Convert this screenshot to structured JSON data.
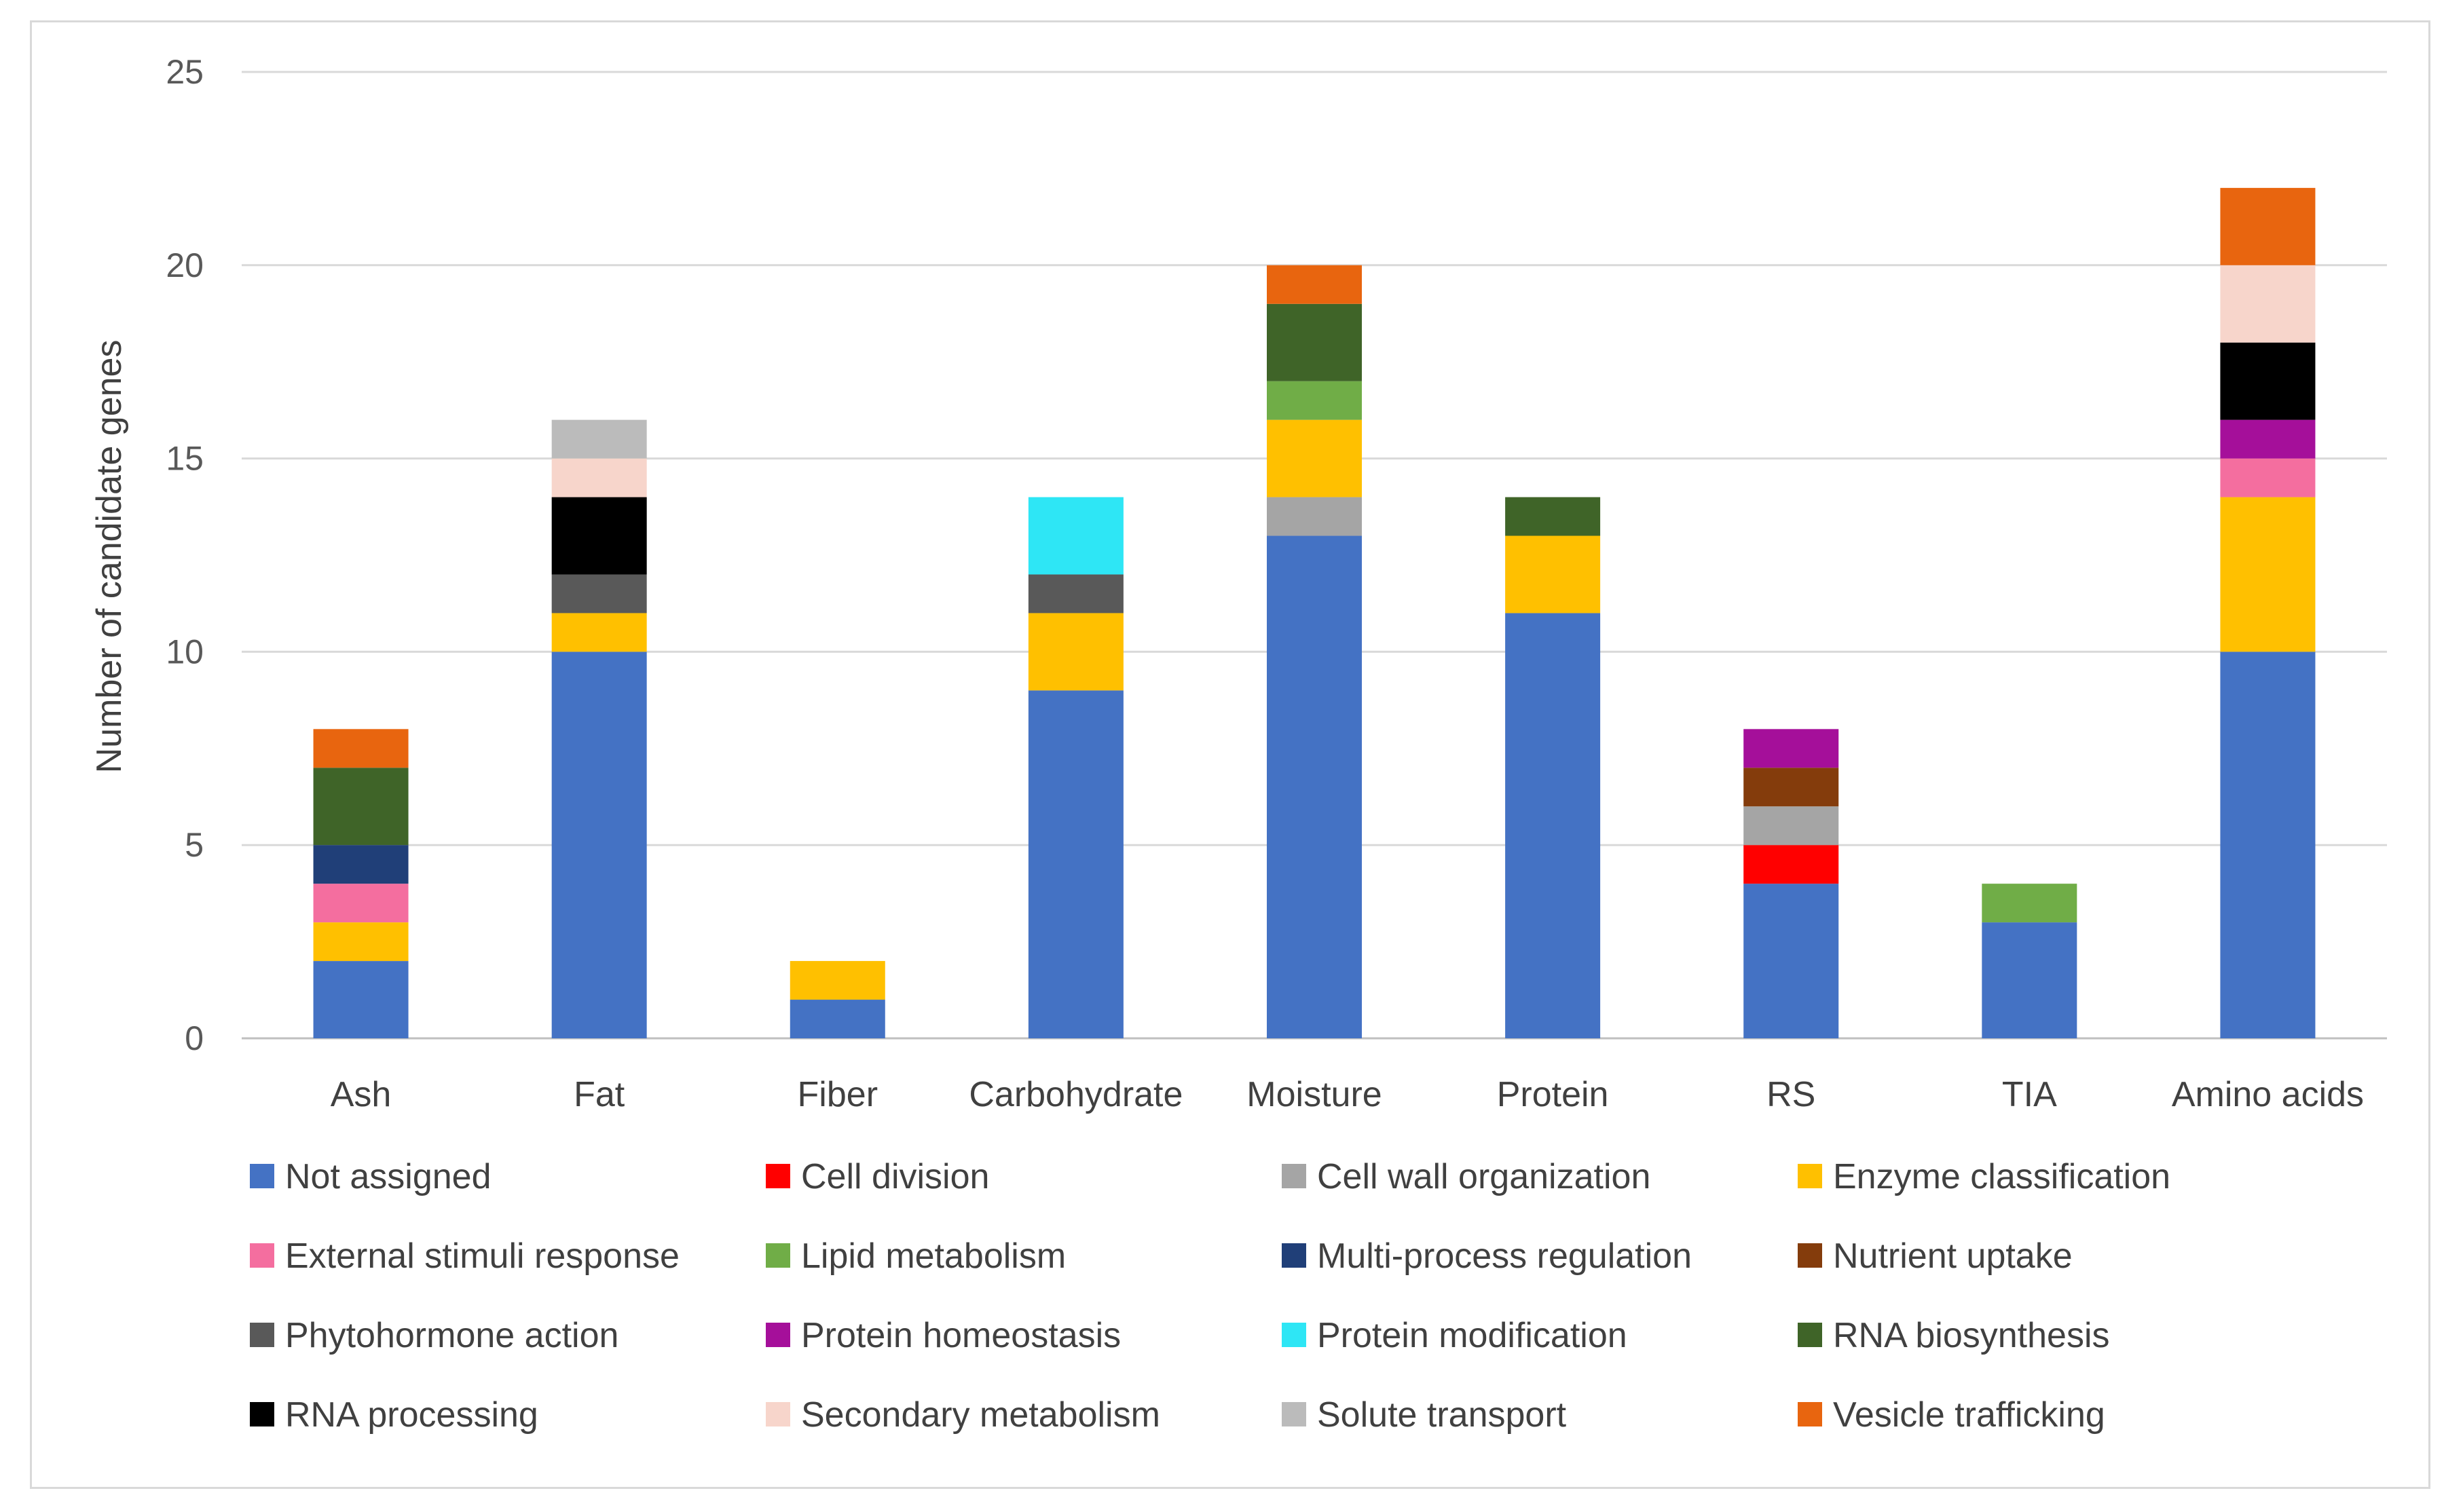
{
  "chart_data": {
    "type": "bar",
    "stacked": true,
    "title": "",
    "xlabel": "",
    "ylabel": "Number of candidate genes",
    "ylim": [
      0,
      25
    ],
    "yticks": [
      0,
      5,
      10,
      15,
      20,
      25
    ],
    "grid": true,
    "legend_position": "bottom",
    "categories": [
      "Ash",
      "Fat",
      "Fiber",
      "Carbohydrate",
      "Moisture",
      "Protein",
      "RS",
      "TIA",
      "Amino acids"
    ],
    "series": [
      {
        "name": "Not assigned",
        "color": "#4472C4",
        "values": [
          2,
          10,
          1,
          9,
          13,
          11,
          4,
          3,
          10
        ]
      },
      {
        "name": "Cell division",
        "color": "#FF0000",
        "values": [
          0,
          0,
          0,
          0,
          0,
          0,
          1,
          0,
          0
        ]
      },
      {
        "name": "Cell wall organization",
        "color": "#A5A5A5",
        "values": [
          0,
          0,
          0,
          0,
          1,
          0,
          1,
          0,
          0
        ]
      },
      {
        "name": "Enzyme classification",
        "color": "#FFC000",
        "values": [
          1,
          1,
          1,
          2,
          2,
          2,
          0,
          0,
          4
        ]
      },
      {
        "name": "External stimuli response",
        "color": "#F46E9F",
        "values": [
          1,
          0,
          0,
          0,
          0,
          0,
          0,
          0,
          1
        ]
      },
      {
        "name": "Lipid metabolism",
        "color": "#70AD47",
        "values": [
          0,
          0,
          0,
          0,
          1,
          0,
          0,
          1,
          0
        ]
      },
      {
        "name": "Multi-process regulation",
        "color": "#203F78",
        "values": [
          1,
          0,
          0,
          0,
          0,
          0,
          0,
          0,
          0
        ]
      },
      {
        "name": "Nutrient uptake",
        "color": "#843C0C",
        "values": [
          0,
          0,
          0,
          0,
          0,
          0,
          1,
          0,
          0
        ]
      },
      {
        "name": "Phytohormone action",
        "color": "#595959",
        "values": [
          0,
          1,
          0,
          1,
          0,
          0,
          0,
          0,
          0
        ]
      },
      {
        "name": "Protein homeostasis",
        "color": "#A50F9A",
        "values": [
          0,
          0,
          0,
          0,
          0,
          0,
          1,
          0,
          1
        ]
      },
      {
        "name": "Protein modification",
        "color": "#2EE6F5",
        "values": [
          0,
          0,
          0,
          2,
          0,
          0,
          0,
          0,
          0
        ]
      },
      {
        "name": "RNA biosynthesis",
        "color": "#3F6428",
        "values": [
          2,
          0,
          0,
          0,
          2,
          1,
          0,
          0,
          0
        ]
      },
      {
        "name": "RNA processing",
        "color": "#000000",
        "values": [
          0,
          2,
          0,
          0,
          0,
          0,
          0,
          0,
          2
        ]
      },
      {
        "name": "Secondary metabolism",
        "color": "#F7D5CB",
        "values": [
          0,
          1,
          0,
          0,
          0,
          0,
          0,
          0,
          2
        ]
      },
      {
        "name": "Solute transport",
        "color": "#BBBBBB",
        "values": [
          0,
          1,
          0,
          0,
          0,
          0,
          0,
          0,
          0
        ]
      },
      {
        "name": "Vesicle trafficking",
        "color": "#E8650F",
        "values": [
          1,
          0,
          0,
          0,
          1,
          0,
          0,
          0,
          2
        ]
      }
    ],
    "colors": {
      "gridline": "#d9d9d9",
      "axis": "#bfbfbf"
    }
  }
}
